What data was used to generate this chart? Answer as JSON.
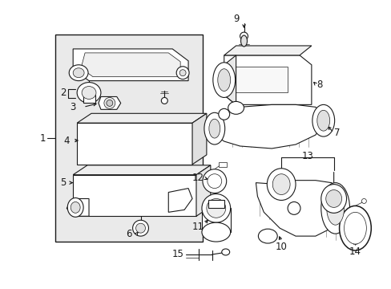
{
  "bg_color": "#ffffff",
  "lc": "#1a1a1a",
  "figsize": [
    4.89,
    3.6
  ],
  "dpi": 100,
  "label_fs": 8.5,
  "lw_main": 0.8,
  "lw_thin": 0.5,
  "box_bg": "#eaeaea"
}
